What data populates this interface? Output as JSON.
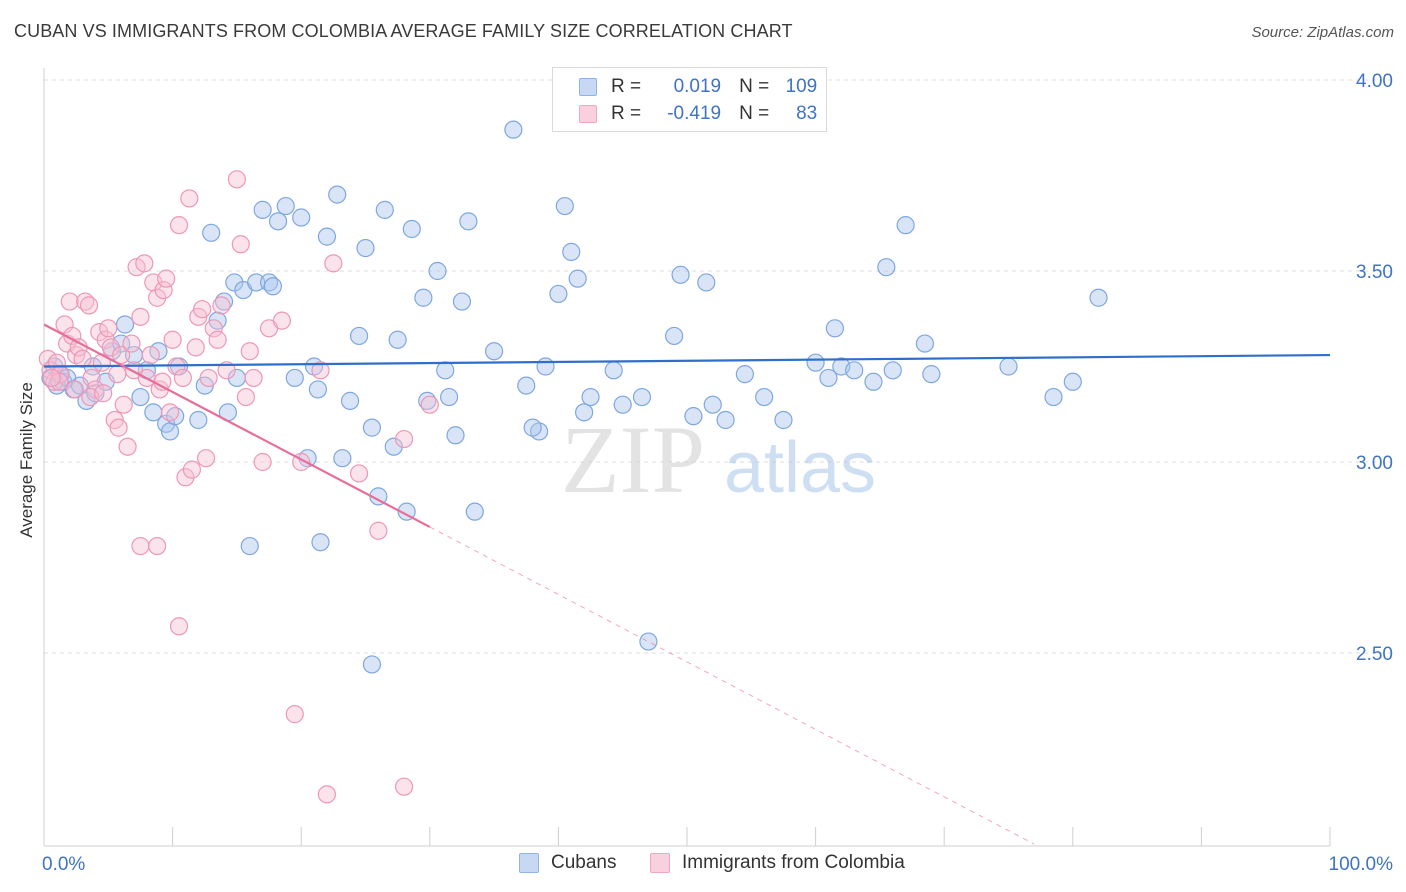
{
  "title": "CUBAN VS IMMIGRANTS FROM COLOMBIA AVERAGE FAMILY SIZE CORRELATION CHART",
  "source": "Source: ZipAtlas.com",
  "watermark": {
    "zip": "ZIP",
    "atlas": "atlas"
  },
  "colors": {
    "blue": "#8fb4e8",
    "blue_line": "#2f6fcc",
    "pink": "#f2a6c0",
    "pink_line": "#e86d98",
    "axis_text": "#3f73c4"
  },
  "legend": {
    "r_label": "R =",
    "n_label": "N =",
    "rows": [
      {
        "r": "0.019",
        "n": "109",
        "color": "blue"
      },
      {
        "r": "-0.419",
        "n": "83",
        "color": "pink"
      }
    ]
  },
  "bottom_legend": {
    "cubans": "Cubans",
    "colombia": "Immigrants from Colombia"
  },
  "chart_data": {
    "type": "scatter",
    "title": "CUBAN VS IMMIGRANTS FROM COLOMBIA AVERAGE FAMILY SIZE CORRELATION CHART",
    "xlabel": "",
    "ylabel": "Average Family Size",
    "xlim": [
      0,
      100
    ],
    "ylim": [
      2.0,
      4.1
    ],
    "x_tick_labels": [
      "0.0%",
      "100.0%"
    ],
    "y_ticks": [
      2.5,
      3.0,
      3.5,
      4.0
    ],
    "y_tick_labels": [
      "2.50",
      "3.00",
      "3.50",
      "4.00"
    ],
    "grid": true,
    "legend_position": "top-center",
    "series": [
      {
        "name": "Cubans",
        "color": "blue",
        "trend": {
          "x0": 0,
          "y0": 3.25,
          "x1": 100,
          "y1": 3.28,
          "dashed_to": 100
        },
        "points": [
          [
            0.5,
            3.22
          ],
          [
            0.8,
            3.25
          ],
          [
            1.0,
            3.2
          ],
          [
            1.2,
            3.23
          ],
          [
            1.5,
            3.21
          ],
          [
            1.8,
            3.22
          ],
          [
            2.3,
            3.19
          ],
          [
            2.8,
            3.2
          ],
          [
            3.3,
            3.16
          ],
          [
            3.8,
            3.25
          ],
          [
            4.0,
            3.18
          ],
          [
            4.8,
            3.21
          ],
          [
            5.3,
            3.29
          ],
          [
            6.0,
            3.31
          ],
          [
            6.3,
            3.36
          ],
          [
            7.0,
            3.28
          ],
          [
            7.5,
            3.17
          ],
          [
            8.0,
            3.24
          ],
          [
            8.5,
            3.13
          ],
          [
            8.9,
            3.29
          ],
          [
            9.5,
            3.1
          ],
          [
            9.8,
            3.08
          ],
          [
            10.2,
            3.12
          ],
          [
            12.0,
            3.11
          ],
          [
            12.5,
            3.2
          ],
          [
            13.0,
            3.6
          ],
          [
            13.5,
            3.37
          ],
          [
            14.0,
            3.42
          ],
          [
            14.3,
            3.13
          ],
          [
            14.8,
            3.47
          ],
          [
            15.5,
            3.45
          ],
          [
            15.0,
            3.22
          ],
          [
            16.5,
            3.47
          ],
          [
            17.0,
            3.66
          ],
          [
            17.5,
            3.47
          ],
          [
            17.8,
            3.46
          ],
          [
            18.2,
            3.63
          ],
          [
            18.8,
            3.67
          ],
          [
            19.5,
            3.22
          ],
          [
            20.0,
            3.64
          ],
          [
            20.5,
            3.01
          ],
          [
            21.0,
            3.25
          ],
          [
            21.3,
            3.19
          ],
          [
            22.0,
            3.59
          ],
          [
            22.8,
            3.7
          ],
          [
            23.2,
            3.01
          ],
          [
            23.8,
            3.16
          ],
          [
            24.5,
            3.33
          ],
          [
            25.0,
            3.56
          ],
          [
            25.5,
            3.09
          ],
          [
            26.0,
            2.91
          ],
          [
            26.5,
            3.66
          ],
          [
            27.2,
            3.04
          ],
          [
            27.5,
            3.32
          ],
          [
            28.2,
            2.87
          ],
          [
            28.6,
            3.61
          ],
          [
            29.5,
            3.43
          ],
          [
            29.8,
            3.16
          ],
          [
            30.6,
            3.5
          ],
          [
            31.2,
            3.24
          ],
          [
            31.5,
            3.17
          ],
          [
            32.0,
            3.07
          ],
          [
            32.5,
            3.42
          ],
          [
            33.0,
            3.63
          ],
          [
            33.5,
            2.87
          ],
          [
            35.0,
            3.29
          ],
          [
            36.5,
            3.87
          ],
          [
            37.5,
            3.2
          ],
          [
            38.5,
            3.08
          ],
          [
            38.0,
            3.09
          ],
          [
            39.0,
            3.25
          ],
          [
            40.0,
            3.44
          ],
          [
            40.5,
            3.67
          ],
          [
            41.0,
            3.55
          ],
          [
            41.5,
            3.48
          ],
          [
            42.0,
            3.13
          ],
          [
            42.5,
            3.17
          ],
          [
            44.3,
            3.24
          ],
          [
            45.0,
            3.15
          ],
          [
            46.5,
            3.17
          ],
          [
            47.0,
            2.53
          ],
          [
            49.0,
            3.33
          ],
          [
            49.5,
            3.49
          ],
          [
            50.5,
            3.12
          ],
          [
            51.5,
            3.47
          ],
          [
            52.0,
            3.15
          ],
          [
            53.0,
            3.11
          ],
          [
            54.5,
            3.23
          ],
          [
            56.0,
            3.17
          ],
          [
            57.5,
            3.11
          ],
          [
            60.0,
            3.26
          ],
          [
            61.0,
            3.22
          ],
          [
            61.5,
            3.35
          ],
          [
            62.0,
            3.25
          ],
          [
            63.0,
            3.24
          ],
          [
            64.5,
            3.21
          ],
          [
            65.5,
            3.51
          ],
          [
            66.0,
            3.24
          ],
          [
            67.0,
            3.62
          ],
          [
            68.5,
            3.31
          ],
          [
            69.0,
            3.23
          ],
          [
            75.0,
            3.25
          ],
          [
            78.5,
            3.17
          ],
          [
            80.0,
            3.21
          ],
          [
            82.0,
            3.43
          ],
          [
            10.5,
            3.25
          ],
          [
            16.0,
            2.78
          ],
          [
            21.5,
            2.79
          ],
          [
            25.5,
            2.47
          ]
        ]
      },
      {
        "name": "Immigrants from Colombia",
        "color": "pink",
        "trend": {
          "x0": 0,
          "y0": 3.36,
          "x1": 30,
          "y1": 2.83,
          "dashed_to": 77
        },
        "points": [
          [
            0.3,
            3.27
          ],
          [
            0.5,
            3.24
          ],
          [
            0.8,
            3.21
          ],
          [
            1.0,
            3.26
          ],
          [
            1.3,
            3.23
          ],
          [
            1.6,
            3.36
          ],
          [
            1.8,
            3.31
          ],
          [
            2.0,
            3.42
          ],
          [
            2.2,
            3.33
          ],
          [
            2.5,
            3.28
          ],
          [
            2.7,
            3.3
          ],
          [
            3.0,
            3.27
          ],
          [
            3.2,
            3.42
          ],
          [
            3.5,
            3.41
          ],
          [
            3.7,
            3.22
          ],
          [
            4.0,
            3.19
          ],
          [
            4.3,
            3.34
          ],
          [
            4.5,
            3.26
          ],
          [
            4.8,
            3.32
          ],
          [
            5.0,
            3.35
          ],
          [
            5.2,
            3.3
          ],
          [
            5.5,
            3.11
          ],
          [
            5.8,
            3.09
          ],
          [
            6.0,
            3.28
          ],
          [
            6.2,
            3.15
          ],
          [
            6.5,
            3.04
          ],
          [
            6.8,
            3.31
          ],
          [
            7.0,
            3.24
          ],
          [
            7.2,
            3.51
          ],
          [
            7.5,
            3.38
          ],
          [
            7.8,
            3.52
          ],
          [
            8.0,
            3.22
          ],
          [
            8.3,
            3.28
          ],
          [
            8.5,
            3.47
          ],
          [
            8.8,
            3.43
          ],
          [
            9.0,
            3.19
          ],
          [
            9.3,
            3.45
          ],
          [
            9.5,
            3.48
          ],
          [
            9.8,
            3.13
          ],
          [
            10.0,
            3.32
          ],
          [
            10.3,
            3.25
          ],
          [
            10.5,
            3.62
          ],
          [
            10.8,
            3.22
          ],
          [
            11.0,
            2.96
          ],
          [
            11.3,
            3.69
          ],
          [
            11.5,
            2.98
          ],
          [
            11.8,
            3.3
          ],
          [
            12.0,
            3.38
          ],
          [
            12.3,
            3.4
          ],
          [
            12.6,
            3.01
          ],
          [
            12.8,
            3.22
          ],
          [
            13.2,
            3.35
          ],
          [
            13.5,
            3.32
          ],
          [
            13.8,
            3.41
          ],
          [
            14.2,
            3.24
          ],
          [
            15.0,
            3.74
          ],
          [
            15.3,
            3.57
          ],
          [
            15.7,
            3.17
          ],
          [
            16.0,
            3.29
          ],
          [
            16.3,
            3.22
          ],
          [
            17.0,
            3.0
          ],
          [
            17.5,
            3.35
          ],
          [
            18.5,
            3.37
          ],
          [
            20.0,
            3.0
          ],
          [
            21.5,
            3.24
          ],
          [
            22.5,
            3.52
          ],
          [
            24.5,
            2.97
          ],
          [
            26.0,
            2.82
          ],
          [
            28.0,
            3.06
          ],
          [
            30.0,
            3.15
          ],
          [
            7.5,
            2.78
          ],
          [
            8.8,
            2.78
          ],
          [
            10.5,
            2.57
          ],
          [
            19.5,
            2.34
          ],
          [
            22.0,
            2.13
          ],
          [
            28.0,
            2.15
          ],
          [
            1.2,
            3.21
          ],
          [
            0.6,
            3.22
          ],
          [
            2.4,
            3.19
          ],
          [
            3.6,
            3.17
          ],
          [
            4.6,
            3.18
          ],
          [
            5.7,
            3.23
          ],
          [
            9.2,
            3.21
          ]
        ]
      }
    ]
  }
}
